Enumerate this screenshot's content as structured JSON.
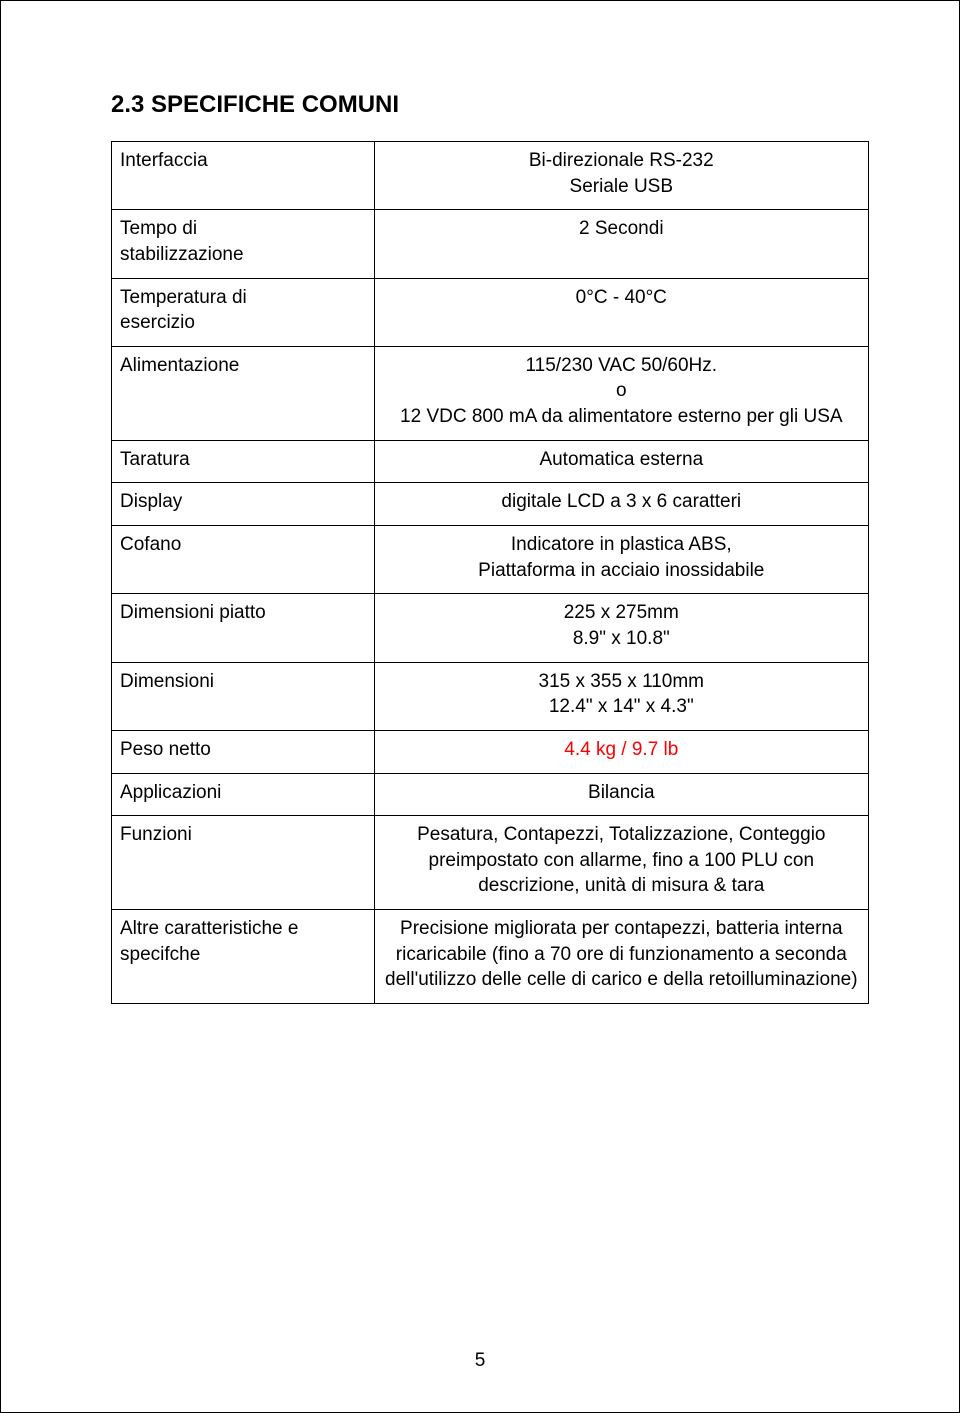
{
  "heading": "2.3   SPECIFICHE COMUNI",
  "table": {
    "col_widths_pct": [
      34,
      66
    ],
    "border_color": "#000000",
    "font_family": "Arial",
    "label_fontsize": 19,
    "rows": [
      {
        "label": "Interfaccia",
        "value_lines": [
          "Bi-direzionale RS-232",
          "Seriale USB"
        ]
      },
      {
        "label": "Tempo di\nstabilizzazione",
        "value_lines": [
          "2 Secondi"
        ]
      },
      {
        "label": "Temperatura di\nesercizio",
        "value_lines": [
          "0°C - 40°C"
        ]
      },
      {
        "label": "Alimentazione",
        "value_lines": [
          "115/230 VAC 50/60Hz.",
          "o",
          "12 VDC 800 mA da alimentatore esterno per gli USA"
        ]
      },
      {
        "label": "Taratura",
        "value_lines": [
          "Automatica esterna"
        ]
      },
      {
        "label": "Display",
        "value_lines": [
          "digitale LCD  a 3 x 6 caratteri"
        ]
      },
      {
        "label": "Cofano",
        "value_lines": [
          "Indicatore in plastica ABS,",
          "Piattaforma in acciaio inossidabile"
        ]
      },
      {
        "label": "Dimensioni piatto",
        "value_lines": [
          "225 x 275mm",
          "8.9\" x 10.8\""
        ]
      },
      {
        "label": "Dimensioni",
        "value_lines": [
          "315 x 355 x 110mm",
          "12.4\" x 14\" x 4.3\""
        ]
      },
      {
        "label": "Peso netto",
        "value_lines": [
          "4.4 kg / 9.7 lb"
        ],
        "value_color": "#ff0000"
      },
      {
        "label": "Applicazioni",
        "value_lines": [
          "Bilancia"
        ]
      },
      {
        "label": "Funzioni",
        "value_lines": [
          "Pesatura, Contapezzi, Totalizzazione, Conteggio preimpostato con allarme, fino a 100 PLU con descrizione, unità di misura & tara"
        ]
      },
      {
        "label": "Altre caratteristiche e specifche",
        "value_lines": [
          "Precisione migliorata per contapezzi, batteria interna ricaricabile (fino a 70 ore di funzionamento a seconda dell'utilizzo delle celle di carico e della retoilluminazione)"
        ]
      }
    ]
  },
  "page_number": "5"
}
